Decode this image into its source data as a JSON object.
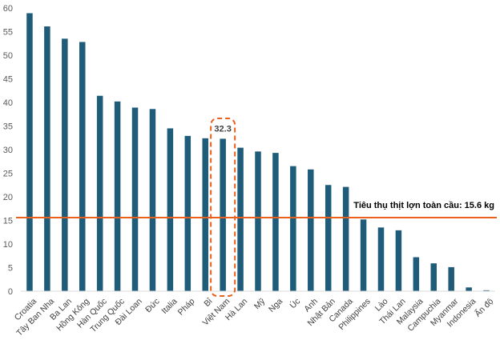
{
  "chart_data": {
    "type": "bar",
    "categories": [
      "Croatia",
      "Tây Ban Nha",
      "Ba Lan",
      "Hồng Kông",
      "Hàn Quốc",
      "Trung Quốc",
      "Đài Loan",
      "Đức",
      "Italia",
      "Pháp",
      "Bỉ",
      "Việt Nam",
      "Hà Lan",
      "Mỹ",
      "Nga",
      "Úc",
      "Anh",
      "Nhật Bản",
      "Canada",
      "Philippines",
      "Lào",
      "Thái Lan",
      "Malaysia",
      "Campuchia",
      "Myanmar",
      "Indonesia",
      "Ấn độ"
    ],
    "values": [
      58.9,
      56.1,
      53.5,
      52.8,
      41.4,
      40.2,
      38.9,
      38.6,
      34.5,
      32.9,
      32.4,
      32.3,
      30.4,
      29.6,
      29.3,
      26.5,
      25.8,
      22.5,
      22.1,
      15.2,
      13.5,
      12.9,
      7.2,
      5.9,
      5.1,
      0.8,
      0.2
    ],
    "ylim": [
      0,
      60
    ],
    "yticks": [
      0,
      5,
      10,
      15,
      20,
      25,
      30,
      35,
      40,
      45,
      50,
      55,
      60
    ],
    "bar_color": "#1f5c7a",
    "reference_line": {
      "value": 15.6,
      "label": "Tiêu thụ thịt lợn toàn cầu: 15.6 kg",
      "color": "#e8601c"
    },
    "highlight": {
      "category": "Việt Nam",
      "label": "32.3",
      "color": "#e8601c"
    },
    "grid": false,
    "legend": "none"
  }
}
